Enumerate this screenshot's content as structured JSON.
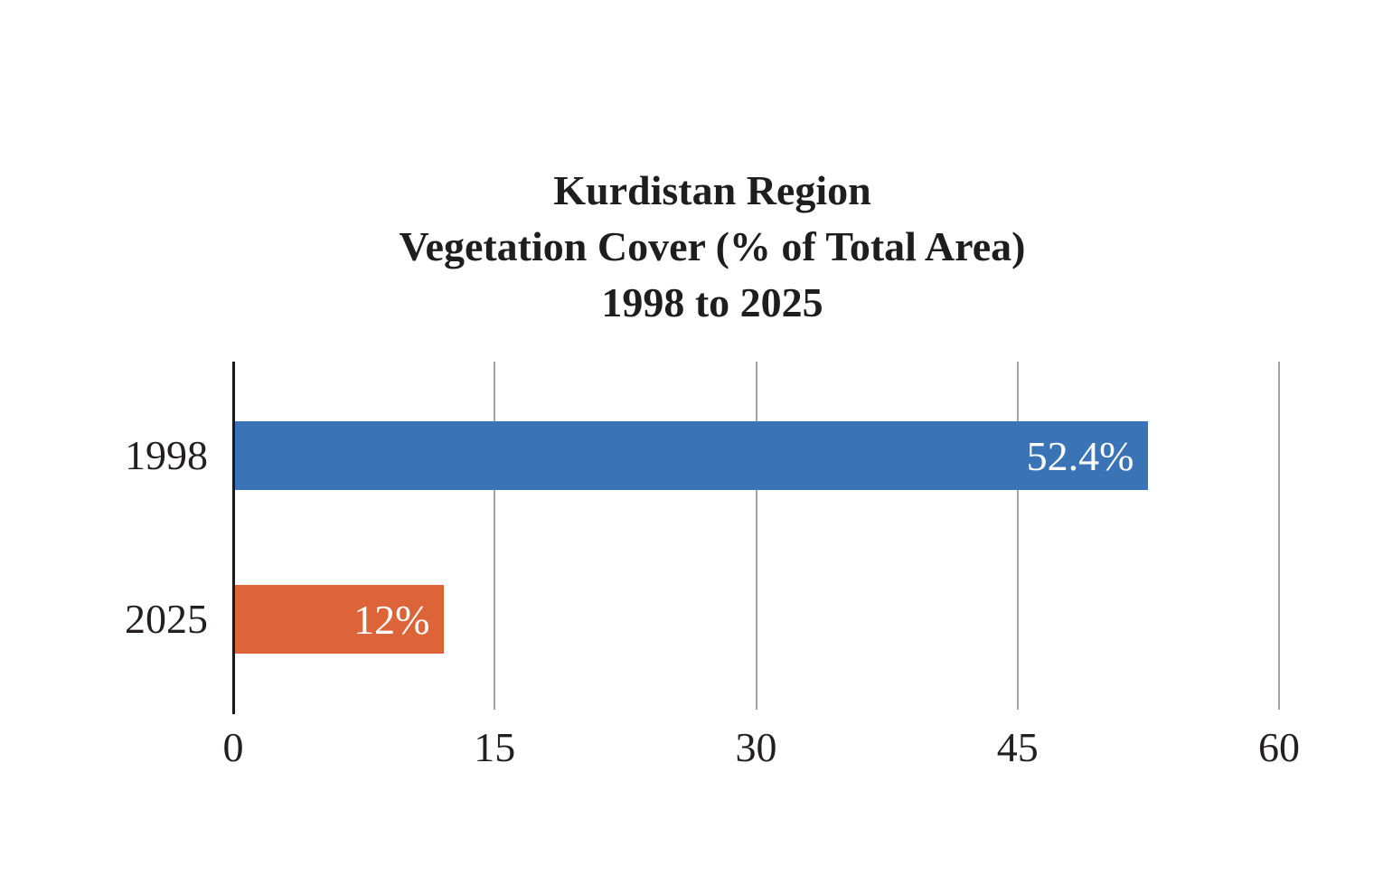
{
  "page": {
    "background": "#FFFFFF"
  },
  "chart_data": {
    "type": "bar",
    "orientation": "horizontal",
    "title_lines": [
      "Kurdistan Region",
      "Vegetation Cover (% of Total Area)",
      "1998 to 2025"
    ],
    "categories": [
      "1998",
      "2025"
    ],
    "values": [
      52.4,
      12
    ],
    "value_labels": [
      "52.4%",
      "12%"
    ],
    "bar_colors": [
      "#3A73B6",
      "#DD6438"
    ],
    "value_label_color": "#FFFFFF",
    "xlabel": "",
    "ylabel": "",
    "xlim": [
      0,
      60
    ],
    "x_ticks": [
      0,
      15,
      30,
      45,
      60
    ],
    "x_tick_labels": [
      "0",
      "15",
      "30",
      "45",
      "60"
    ],
    "grid": true,
    "gridline_color": "#A3A3A3",
    "axis_color": "#1A1A1A",
    "text_color": "#231F20",
    "legend_position": "none"
  }
}
